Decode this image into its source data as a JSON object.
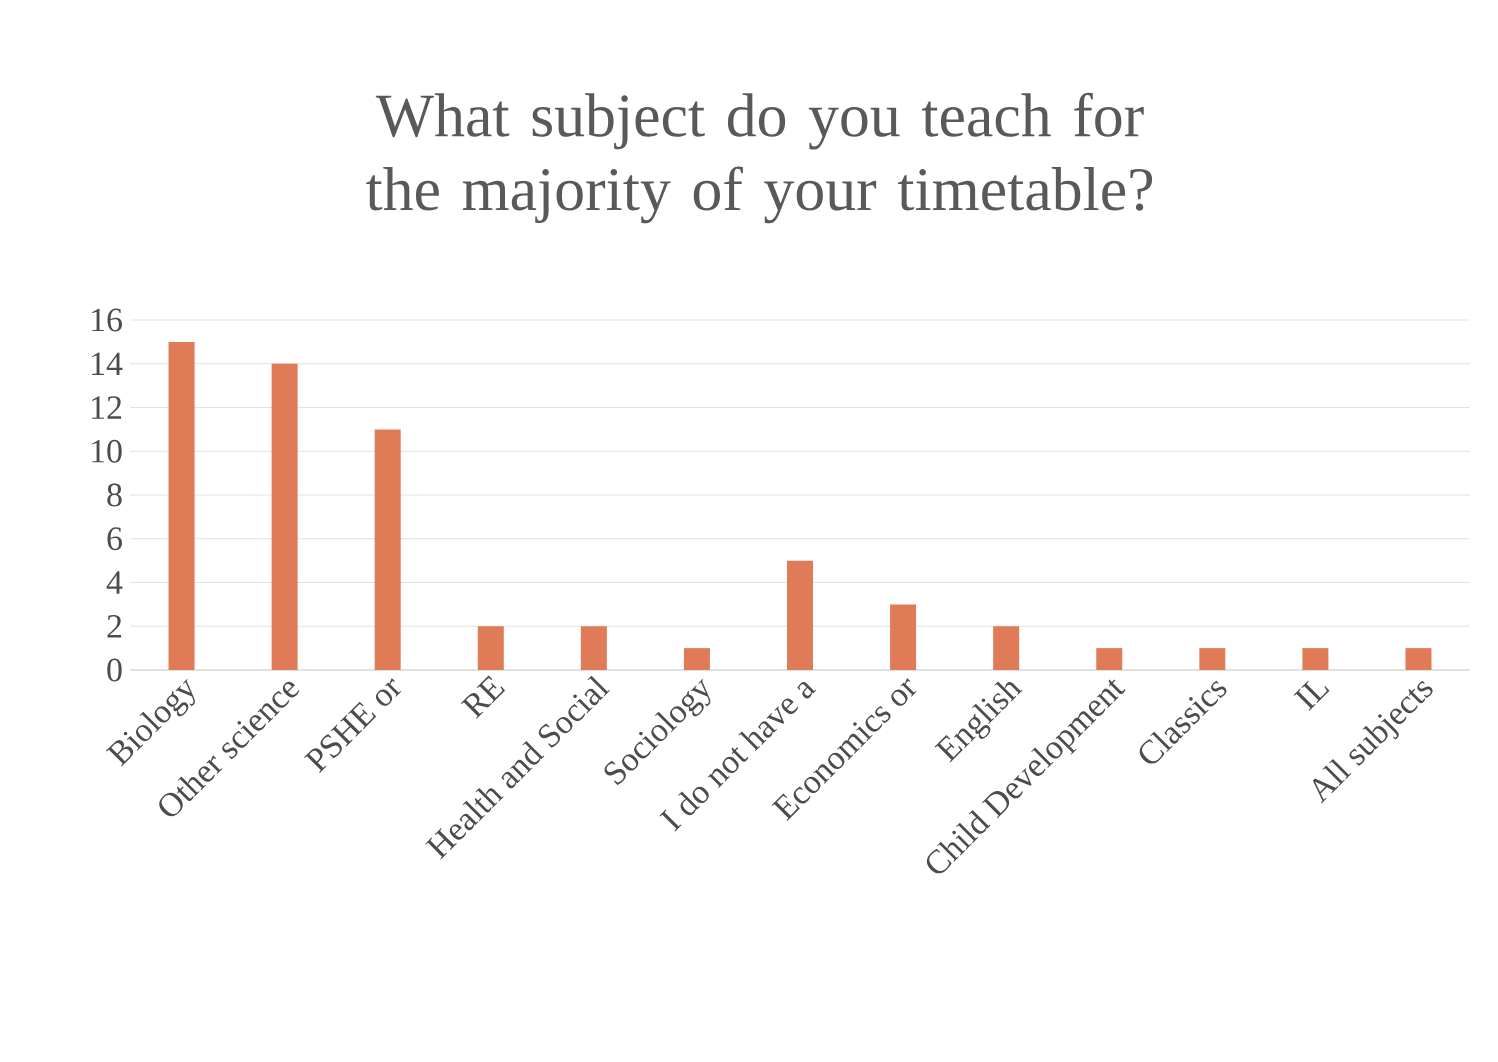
{
  "chart_data": {
    "type": "bar",
    "title": "What subject do you teach for the majority of your timetable?",
    "categories": [
      "Biology",
      "Other science",
      "PSHE or",
      "RE",
      "Health and Social",
      "Sociology",
      "I do not have a",
      "Economics or",
      "English",
      "Child Development",
      "Classics",
      "IL",
      "All subjects"
    ],
    "values": [
      15,
      14,
      11,
      2,
      2,
      1,
      5,
      3,
      2,
      1,
      1,
      1,
      1
    ],
    "color": "#e07b57",
    "ylim": [
      0,
      16
    ],
    "yticks": [
      0,
      2,
      4,
      6,
      8,
      10,
      12,
      14,
      16
    ],
    "grid": "y"
  }
}
